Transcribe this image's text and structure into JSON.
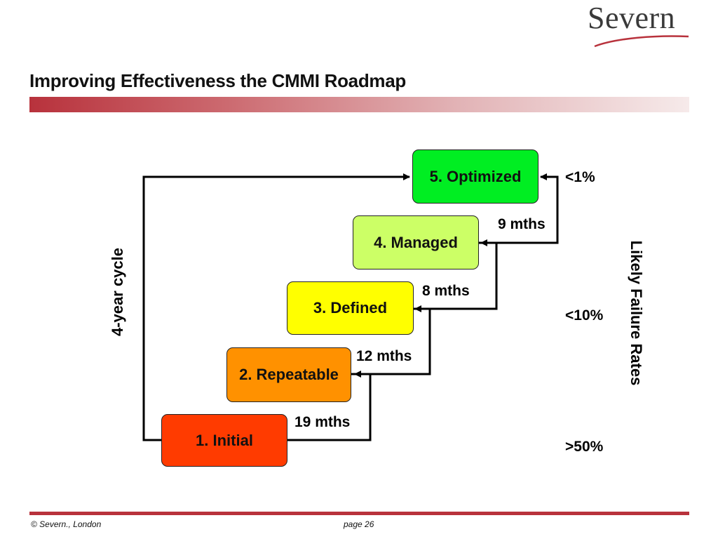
{
  "logo": {
    "text": "Severn"
  },
  "title": "Improving Effectiveness the CMMI Roadmap",
  "levels": [
    {
      "label": "1. Initial",
      "color": "#ff3b00"
    },
    {
      "label": "2. Repeatable",
      "color": "#ff9100"
    },
    {
      "label": "3. Defined",
      "color": "#ffff00"
    },
    {
      "label": "4. Managed",
      "color": "#ccff66"
    },
    {
      "label": "5. Optimized",
      "color": "#00ee22"
    }
  ],
  "durations": [
    "19 mths",
    "12 mths",
    "8 mths",
    "9 mths"
  ],
  "cycle_label": "4-year cycle",
  "failure_rates": {
    "label": "Likely Failure Rates",
    "top": "<1%",
    "middle": "<10%",
    "bottom": ">50%"
  },
  "footer": {
    "copyright": "© Severn., London",
    "page": "page 26"
  }
}
